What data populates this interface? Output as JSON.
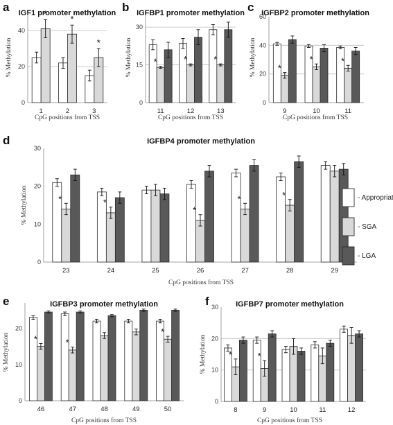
{
  "colors": {
    "appropriate": "#ffffff",
    "sga": "#d9d9d9",
    "lga": "#595959",
    "outline": "#2b2b2b",
    "grid": "#bdbdbd"
  },
  "legend": {
    "items": [
      {
        "key": "appropriate",
        "label": "- Appropriate"
      },
      {
        "key": "sga",
        "label": "- SGA"
      },
      {
        "key": "lga",
        "label": "- LGA"
      }
    ]
  },
  "chart_data": [
    {
      "id": "a",
      "letter": "a",
      "type": "bar",
      "title": "IGF1 promoter methylation",
      "ylabel": "% Methylation",
      "xlabel": "CpG positions from TSS",
      "ylim": [
        0,
        50
      ],
      "yticks": [
        0,
        20,
        40
      ],
      "grid": [
        20,
        40
      ],
      "categories": [
        "1",
        "2",
        "3"
      ],
      "series": [
        {
          "key": "appropriate",
          "values": [
            25,
            22,
            15
          ],
          "errors": [
            3,
            3,
            3
          ]
        },
        {
          "key": "sga",
          "values": [
            41,
            38,
            25
          ],
          "errors": [
            5,
            5,
            5
          ]
        }
      ],
      "significant": [
        [
          0,
          1
        ],
        [
          1,
          1
        ],
        [
          2,
          1
        ]
      ]
    },
    {
      "id": "b",
      "letter": "b",
      "type": "bar",
      "title": "IGFBP1 promoter methylation",
      "ylabel": "% Methylation",
      "xlabel": "CpG positions from TSS",
      "ylim": [
        0,
        35
      ],
      "yticks": [
        0,
        15,
        30
      ],
      "grid": [
        15,
        30
      ],
      "categories": [
        "11",
        "12",
        "13"
      ],
      "series": [
        {
          "key": "appropriate",
          "values": [
            23,
            23.5,
            29
          ],
          "errors": [
            2,
            2,
            2
          ]
        },
        {
          "key": "sga",
          "values": [
            14,
            15,
            15
          ],
          "errors": [
            0.4,
            0.4,
            0.4
          ]
        },
        {
          "key": "lga",
          "values": [
            21,
            26,
            29
          ],
          "errors": [
            3,
            3,
            3
          ]
        }
      ],
      "significant": [
        [
          0,
          1
        ],
        [
          1,
          1
        ],
        [
          2,
          1
        ]
      ]
    },
    {
      "id": "c",
      "letter": "c",
      "type": "bar",
      "title": "IGFBP2 promoter methylation",
      "ylabel": "% Methylation",
      "xlabel": "CpG positions from TSS",
      "ylim": [
        0,
        60
      ],
      "yticks": [
        0,
        20,
        40,
        60
      ],
      "grid": [
        20,
        40
      ],
      "categories": [
        "9",
        "10",
        "11"
      ],
      "series": [
        {
          "key": "appropriate",
          "values": [
            41,
            39.5,
            38.5
          ],
          "errors": [
            1,
            1,
            1
          ]
        },
        {
          "key": "sga",
          "values": [
            19,
            25,
            24
          ],
          "errors": [
            2,
            2,
            2
          ]
        },
        {
          "key": "lga",
          "values": [
            44,
            38,
            36
          ],
          "errors": [
            2.5,
            2.5,
            2.5
          ]
        }
      ],
      "significant": [
        [
          0,
          1
        ],
        [
          1,
          1
        ],
        [
          2,
          1
        ]
      ]
    },
    {
      "id": "d",
      "letter": "d",
      "type": "bar",
      "title": "IGFBP4 promoter methylation",
      "ylabel": "% Methylation",
      "xlabel": "CpG positions from TSS",
      "ylim": [
        0,
        30
      ],
      "yticks": [
        0,
        10,
        20,
        30
      ],
      "grid": [],
      "categories": [
        "23",
        "24",
        "25",
        "26",
        "27",
        "28",
        "29"
      ],
      "series": [
        {
          "key": "appropriate",
          "values": [
            21,
            18.5,
            19,
            20.5,
            23.5,
            22.5,
            25.5
          ],
          "errors": [
            1,
            1,
            1,
            1,
            1,
            1,
            1
          ]
        },
        {
          "key": "sga",
          "values": [
            14,
            13,
            19,
            11,
            14,
            15,
            24
          ],
          "errors": [
            1.5,
            1.5,
            1.5,
            1.5,
            1.5,
            1.5,
            1.5
          ]
        },
        {
          "key": "lga",
          "values": [
            23,
            17,
            18,
            24,
            25.5,
            26.5,
            24.5
          ],
          "errors": [
            1.5,
            1.5,
            1.5,
            1.5,
            1.5,
            1.5,
            1.5
          ]
        }
      ],
      "significant": [
        [
          0,
          1
        ],
        [
          1,
          1
        ],
        [
          3,
          1
        ],
        [
          4,
          1
        ],
        [
          5,
          1
        ]
      ]
    },
    {
      "id": "e",
      "letter": "e",
      "type": "bar",
      "title": "IGFBP3 promoter methylation",
      "ylabel": "% Methylation",
      "xlabel": "CpG positions from TSS",
      "ylim": [
        0,
        27
      ],
      "yticks": [
        0,
        10,
        20
      ],
      "grid": [],
      "categories": [
        "46",
        "47",
        "48",
        "49",
        "50"
      ],
      "series": [
        {
          "key": "appropriate",
          "values": [
            23,
            24,
            22,
            22,
            22
          ],
          "errors": [
            0.5,
            0.5,
            0.5,
            0.5,
            0.5
          ]
        },
        {
          "key": "sga",
          "values": [
            15,
            14,
            18,
            19,
            17
          ],
          "errors": [
            0.8,
            0.8,
            0.8,
            0.8,
            0.8
          ]
        },
        {
          "key": "lga",
          "values": [
            24.5,
            24.5,
            23.5,
            25,
            25
          ],
          "errors": [
            0.3,
            0.3,
            0.3,
            0.3,
            0.3
          ]
        }
      ],
      "significant": [
        [
          0,
          1
        ],
        [
          1,
          1
        ],
        [
          4,
          1
        ]
      ]
    },
    {
      "id": "f",
      "letter": "f",
      "type": "bar",
      "title": "IGFBP7  promoter methylation",
      "ylabel": "% Methylation",
      "xlabel": "CpG positions from TSS",
      "ylim": [
        0,
        30
      ],
      "yticks": [
        0,
        10,
        20,
        30
      ],
      "grid": [
        10,
        20
      ],
      "categories": [
        "8",
        "9",
        "10",
        "11",
        "12"
      ],
      "series": [
        {
          "key": "appropriate",
          "values": [
            17,
            19.5,
            16.5,
            18,
            23
          ],
          "errors": [
            1,
            1,
            1,
            1,
            1
          ]
        },
        {
          "key": "sga",
          "values": [
            11,
            10.5,
            17.5,
            14.5,
            21
          ],
          "errors": [
            2.5,
            2.5,
            2.5,
            2.5,
            2.5
          ]
        },
        {
          "key": "lga",
          "values": [
            19.5,
            21.5,
            16,
            18.5,
            21.5
          ],
          "errors": [
            1,
            1,
            1,
            1,
            1
          ]
        }
      ],
      "significant": [
        [
          0,
          1
        ],
        [
          1,
          1
        ]
      ]
    }
  ]
}
